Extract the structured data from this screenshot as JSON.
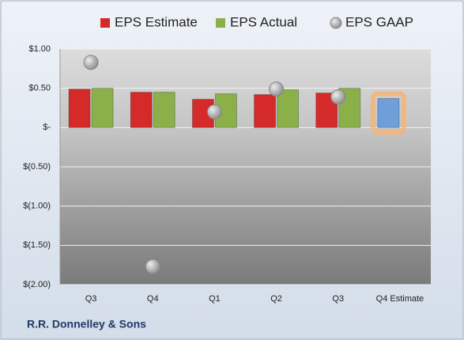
{
  "chart_data": {
    "type": "bar",
    "categories": [
      "Q3",
      "Q4",
      "Q1",
      "Q2",
      "Q3",
      "Q4 Estimate"
    ],
    "series": [
      {
        "name": "EPS Estimate",
        "color": "#d42a2a",
        "values": [
          0.49,
          0.45,
          0.36,
          0.42,
          0.44,
          0.37
        ],
        "highlight": {
          "index": 5,
          "color": "#6f9fd8",
          "glow": "#f7b574"
        }
      },
      {
        "name": "EPS Actual",
        "color": "#8bb04a",
        "values": [
          0.5,
          0.45,
          0.43,
          0.48,
          0.5,
          null
        ]
      },
      {
        "name": "EPS GAAP",
        "color": "#a6a6a6",
        "type": "scatter",
        "values": [
          0.83,
          -1.77,
          0.2,
          0.49,
          0.39,
          null
        ]
      }
    ],
    "ylim": [
      -2,
      1
    ],
    "yticks": [
      {
        "value": 1,
        "label": "$1.00"
      },
      {
        "value": 0.5,
        "label": "$0.50"
      },
      {
        "value": 0,
        "label": "$-"
      },
      {
        "value": -0.5,
        "label": "$(0.50)"
      },
      {
        "value": -1,
        "label": "$(1.00)"
      },
      {
        "value": -1.5,
        "label": "$(1.50)"
      },
      {
        "value": -2,
        "label": "$(2.00)"
      }
    ],
    "grid": true,
    "footer": "R.R. Donnelley & Sons"
  }
}
